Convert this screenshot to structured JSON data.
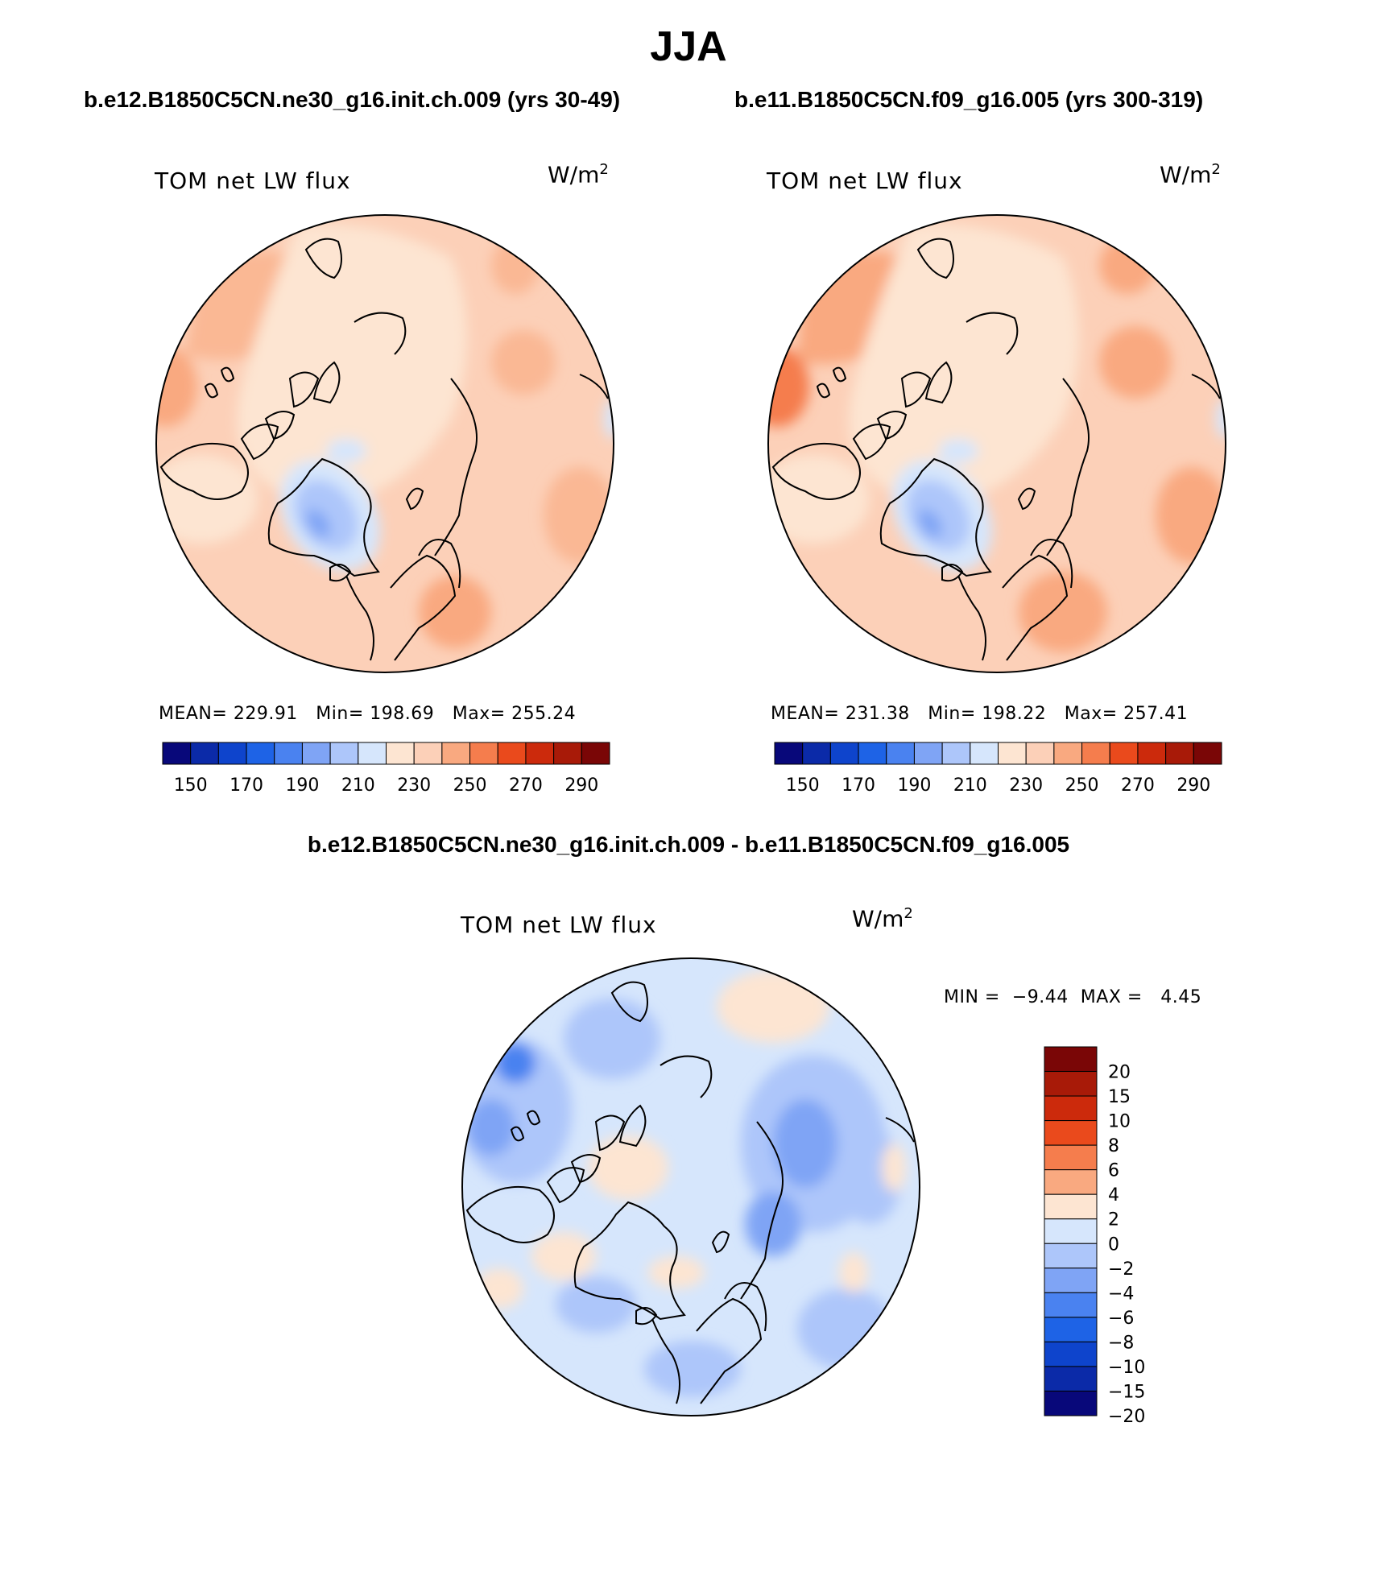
{
  "season_title": "JJA",
  "panels": [
    {
      "id": "left",
      "case_title": "b.e12.B1850C5CN.ne30_g16.init.ch.009 (yrs 30-49)",
      "variable": "TOM net LW flux",
      "units_base": "W/m",
      "units_exp": "2",
      "stats": {
        "mean_label": "MEAN=",
        "mean": "229.91",
        "min_label": "Min=",
        "min": "198.69",
        "max_label": "Max=",
        "max": "255.24"
      },
      "colorbar_ticks": [
        "150",
        "170",
        "190",
        "210",
        "230",
        "250",
        "270",
        "290"
      ]
    },
    {
      "id": "right",
      "case_title": "b.e11.B1850C5CN.f09_g16.005 (yrs 300-319)",
      "variable": "TOM net LW flux",
      "units_base": "W/m",
      "units_exp": "2",
      "stats": {
        "mean_label": "MEAN=",
        "mean": "231.38",
        "min_label": "Min=",
        "min": "198.22",
        "max_label": "Max=",
        "max": "257.41"
      },
      "colorbar_ticks": [
        "150",
        "170",
        "190",
        "210",
        "230",
        "250",
        "270",
        "290"
      ]
    }
  ],
  "difference": {
    "title": "b.e12.B1850C5CN.ne30_g16.init.ch.009 - b.e11.B1850C5CN.f09_g16.005",
    "variable": "TOM net LW flux",
    "units_base": "W/m",
    "units_exp": "2",
    "min_label": "MIN =",
    "min": "−9.44",
    "max_label": "MAX =",
    "max": "4.45",
    "colorbar_labels": [
      "20",
      "15",
      "10",
      "8",
      "6",
      "4",
      "2",
      "0",
      "−2",
      "−4",
      "−6",
      "−8",
      "−10",
      "−15",
      "−20"
    ]
  },
  "colors": {
    "abs_scale": [
      "#08087a",
      "#0b2aa8",
      "#0e44cc",
      "#1e63e6",
      "#4a82f0",
      "#7fa4f5",
      "#adc6fa",
      "#d6e6fc",
      "#fde5d2",
      "#fcd0b8",
      "#f9a980",
      "#f57d4d",
      "#ea4a1c",
      "#cc2a0c",
      "#a81a08",
      "#7a0606"
    ],
    "diff_scale": [
      "#7a0606",
      "#a81a08",
      "#cc2a0c",
      "#ea4a1c",
      "#f57d4d",
      "#f9a980",
      "#fde5d2",
      "#d6e6fc",
      "#adc6fa",
      "#7fa4f5",
      "#4a82f0",
      "#1e63e6",
      "#0e44cc",
      "#0b2aa8",
      "#08087a"
    ]
  }
}
